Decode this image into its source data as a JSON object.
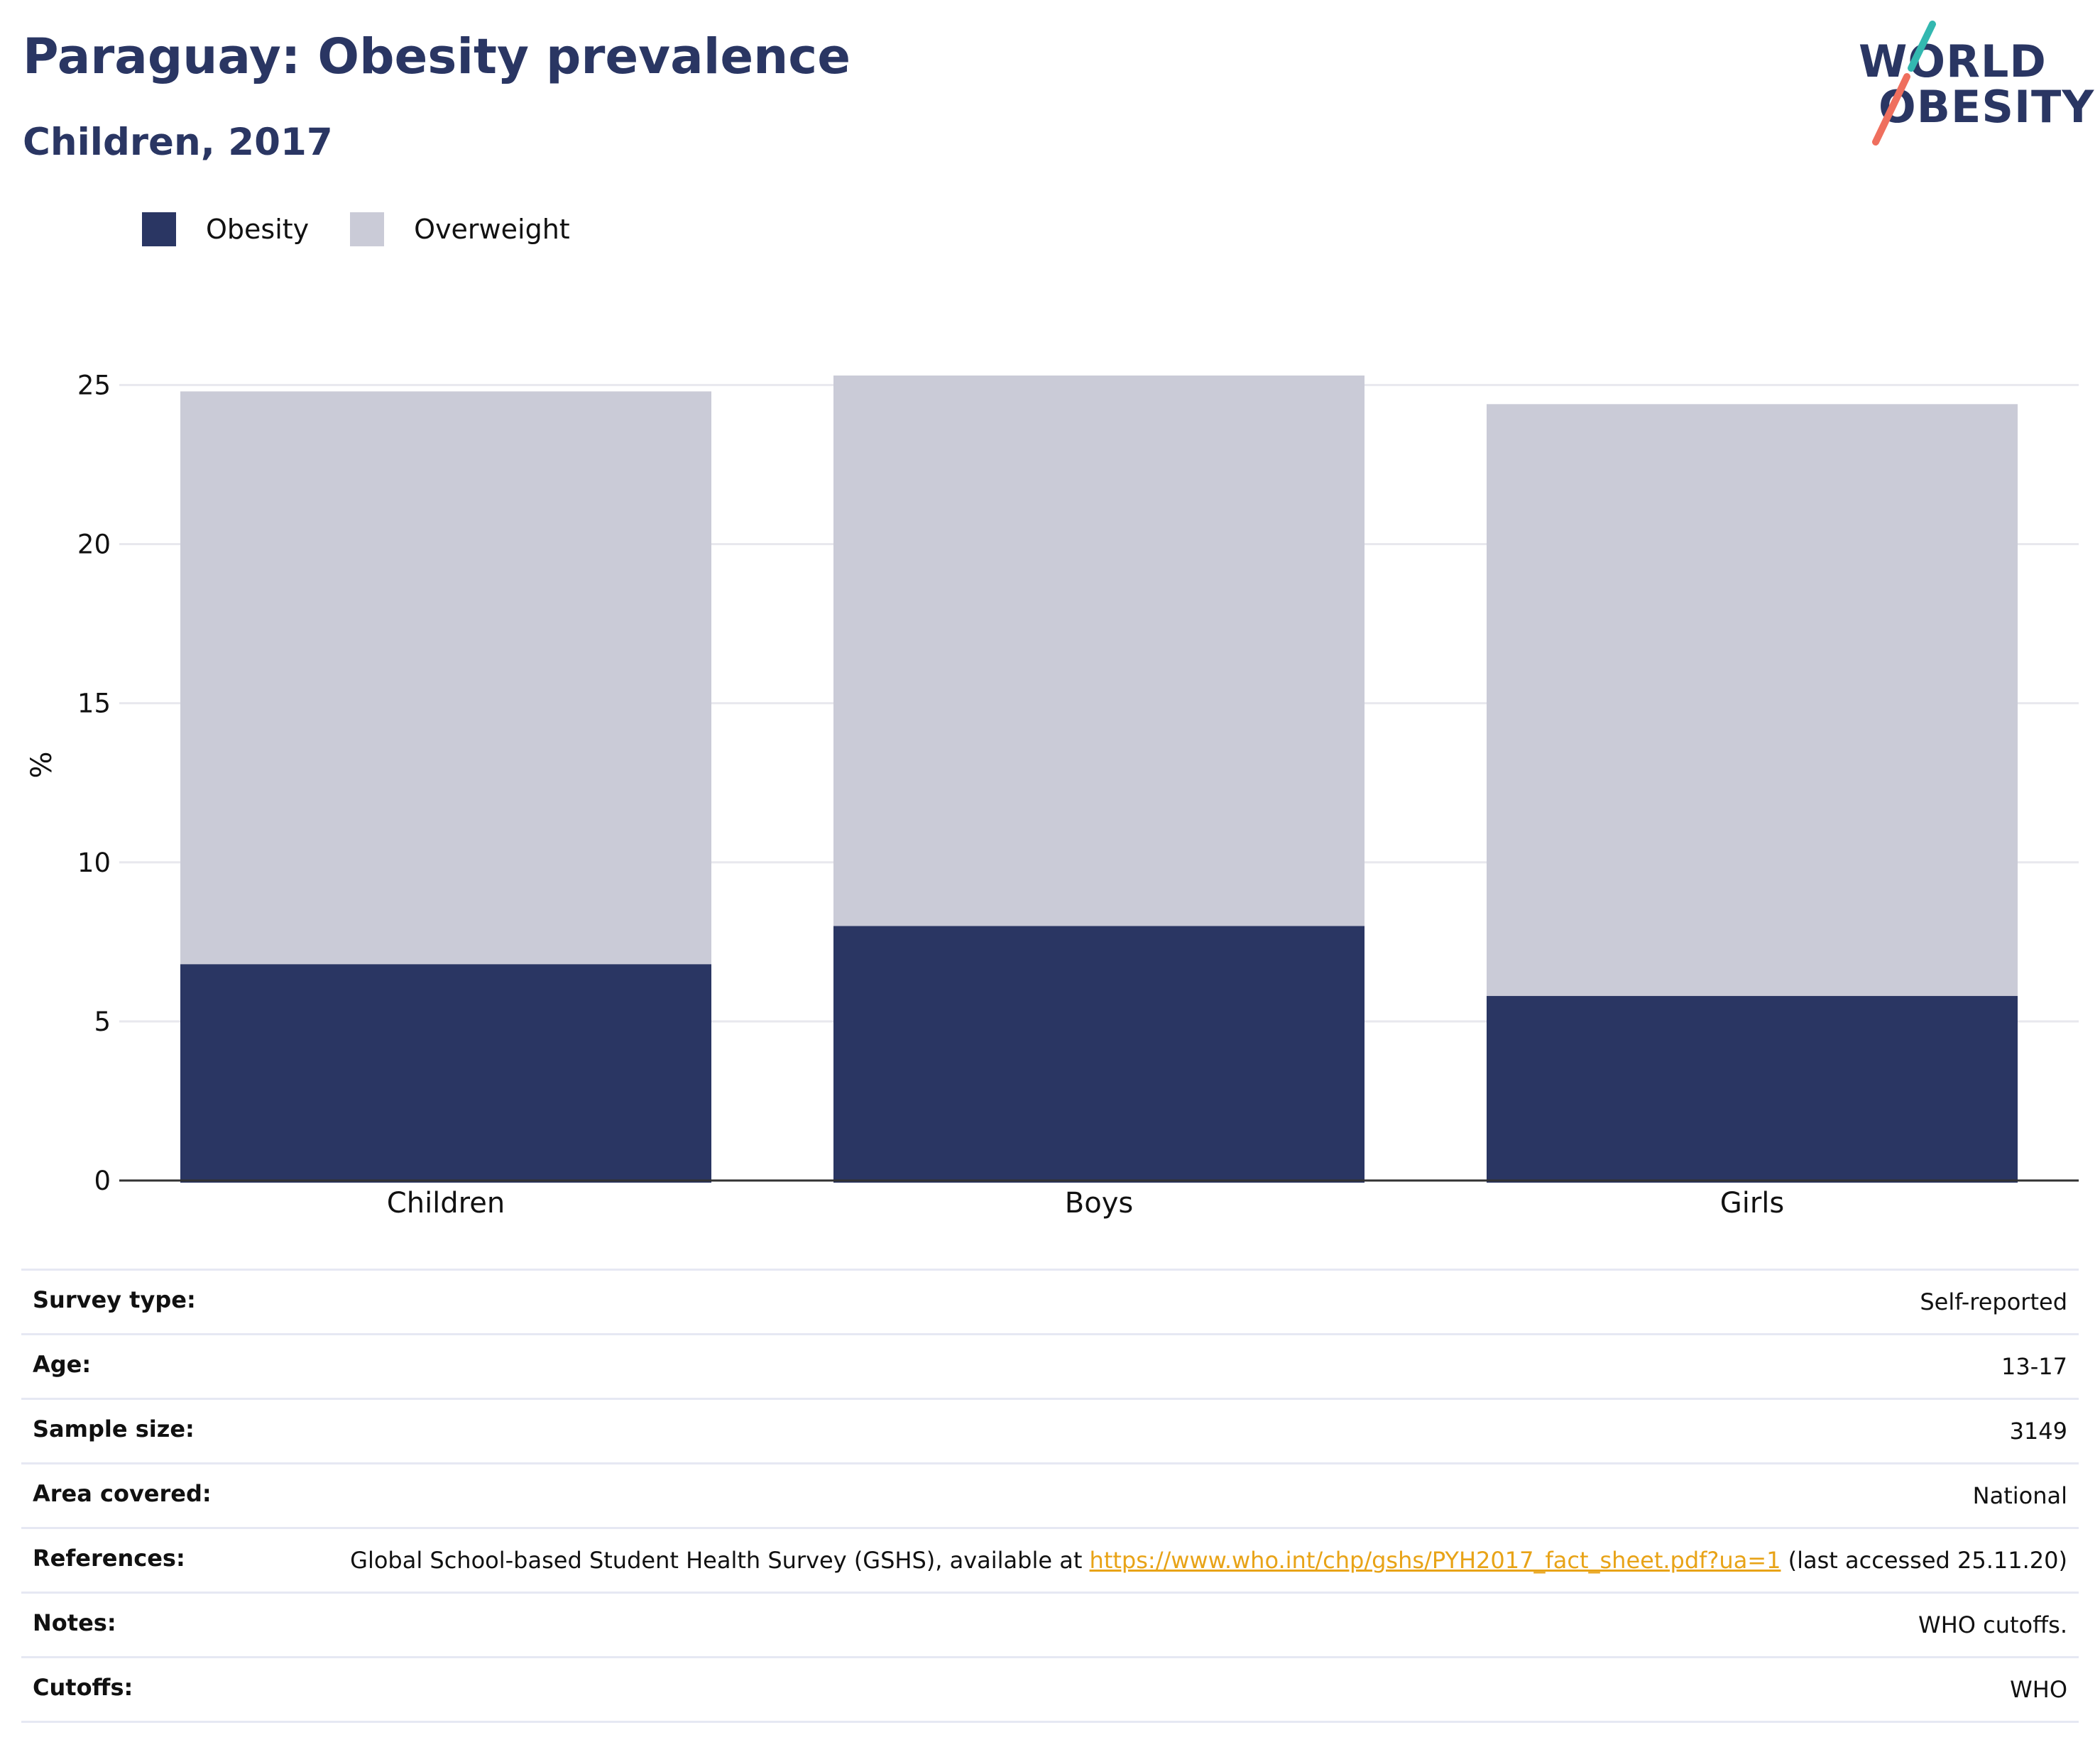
{
  "header": {
    "title": "Paraguay: Obesity prevalence",
    "subtitle": "Children, 2017"
  },
  "logo": {
    "line1": "WORLD",
    "line2": "OBESITY",
    "accent_teal": "#33b8b0",
    "accent_coral": "#ef6f5e"
  },
  "colors": {
    "obesity": "#2a3663",
    "overweight": "#cacbd7",
    "grid": "#e8e8ee",
    "axis": "#333333"
  },
  "chart_data": {
    "type": "bar",
    "stacked": true,
    "categories": [
      "Children",
      "Boys",
      "Girls"
    ],
    "series": [
      {
        "name": "Obesity",
        "values": [
          6.8,
          8.0,
          5.8
        ]
      },
      {
        "name": "Overweight",
        "values": [
          18.0,
          17.3,
          18.6
        ]
      }
    ],
    "ylabel": "%",
    "ylim": [
      0,
      25.5
    ],
    "yticks": [
      0,
      5,
      10,
      15,
      20,
      25
    ],
    "grid": true,
    "legend_position": "top-left"
  },
  "metadata": [
    {
      "key": "Survey type:",
      "value": "Self-reported"
    },
    {
      "key": "Age:",
      "value": "13-17"
    },
    {
      "key": "Sample size:",
      "value": "3149"
    },
    {
      "key": "Area covered:",
      "value": "National"
    },
    {
      "key": "References:",
      "value_pre": "Global School-based Student Health Survey (GSHS), available at ",
      "link": "https://www.who.int/chp/gshs/PYH2017_fact_sheet.pdf?ua=1",
      "value_post": " (last accessed 25.11.20)"
    },
    {
      "key": "Notes:",
      "value": "WHO cutoffs."
    },
    {
      "key": "Cutoffs:",
      "value": "WHO"
    }
  ]
}
